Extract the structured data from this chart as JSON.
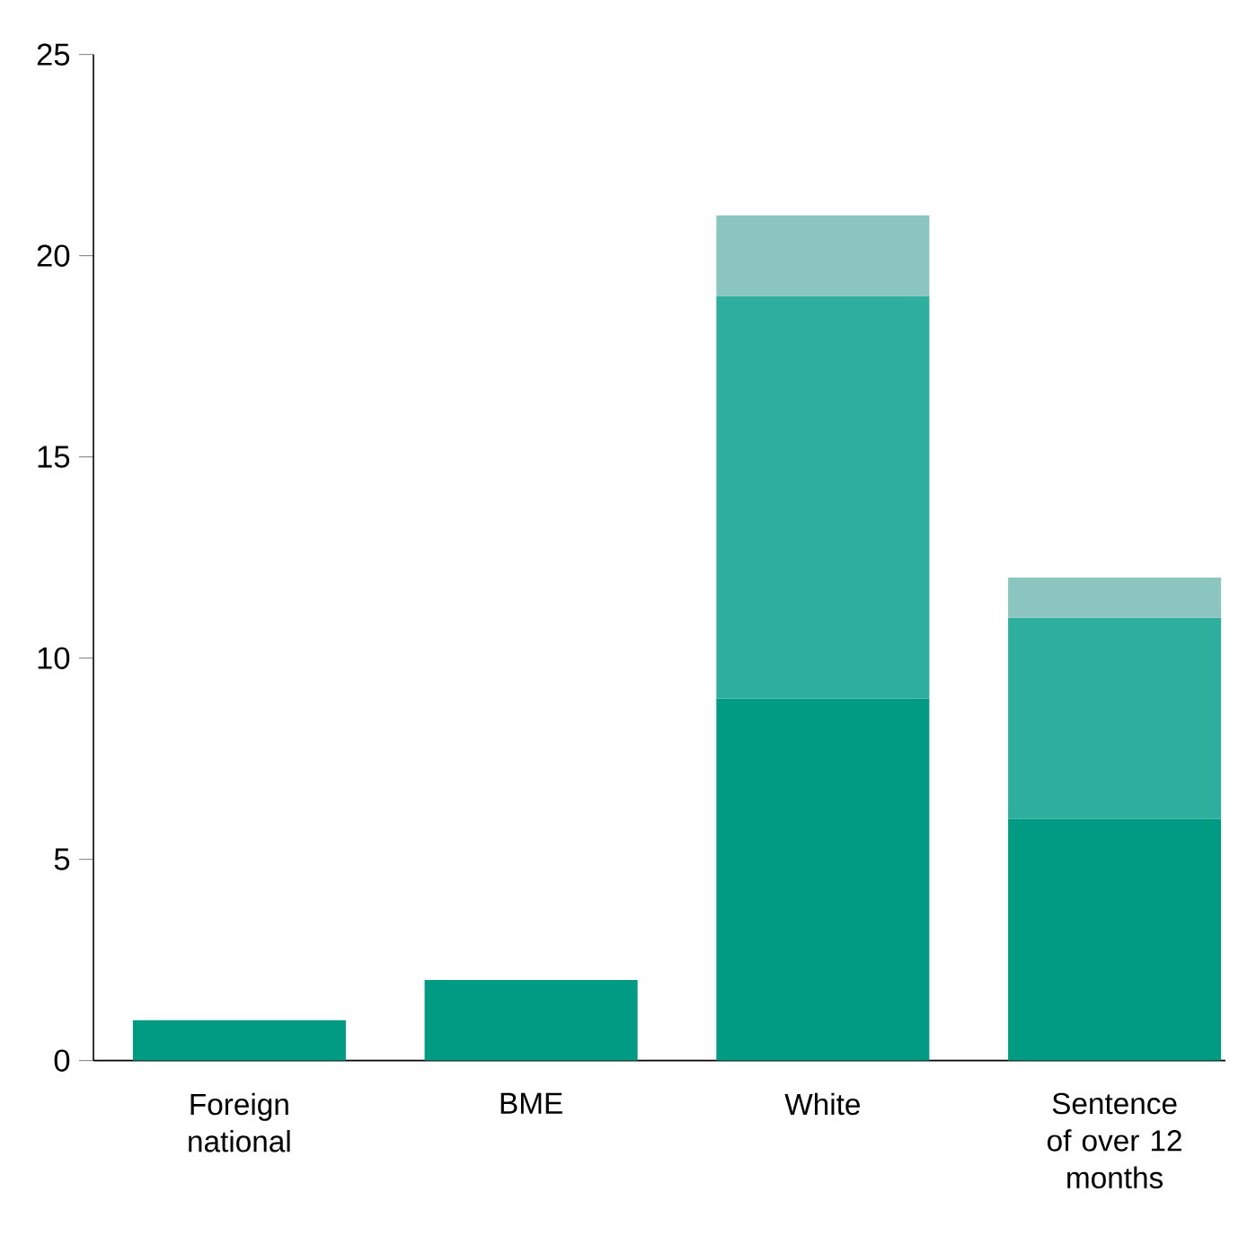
{
  "chart_data": {
    "type": "bar",
    "stacked": true,
    "categories": [
      "Foreign national",
      "BME",
      "White",
      "Sentence of over 12 months"
    ],
    "series": [
      {
        "color": "#009b82",
        "values": [
          1,
          2,
          9,
          6
        ]
      },
      {
        "color": "#2eae9d",
        "values": [
          null,
          null,
          10,
          5
        ]
      },
      {
        "color": "#8bc5c0",
        "values": [
          null,
          null,
          2,
          1
        ]
      }
    ],
    "ylim": [
      0,
      25
    ],
    "yticks": [
      0,
      5,
      10,
      15,
      20,
      25
    ],
    "grid": false
  }
}
